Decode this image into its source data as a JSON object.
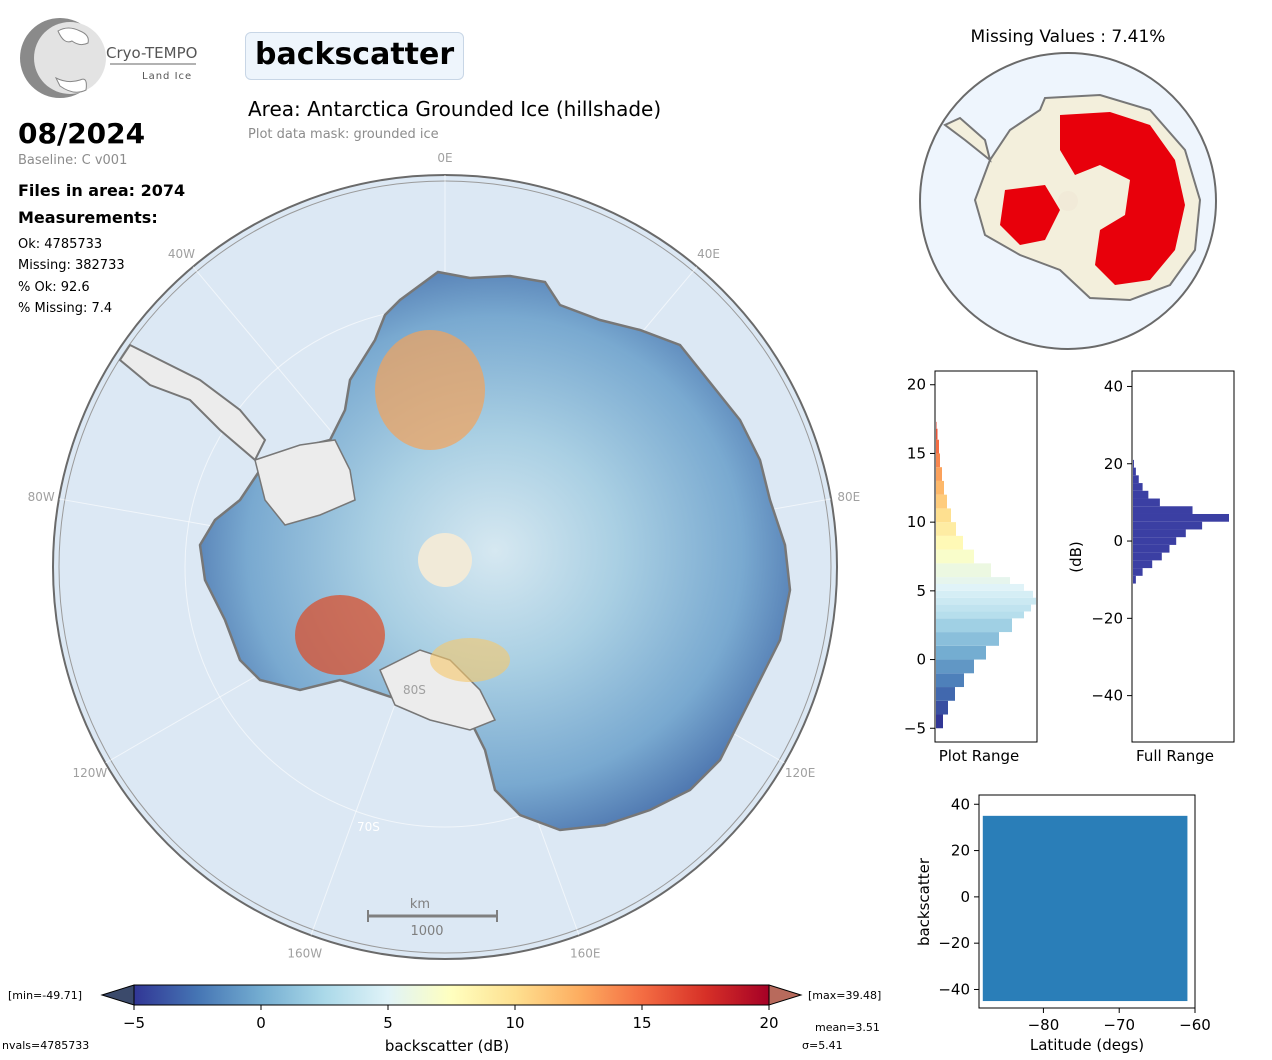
{
  "header": {
    "logo_name": "Cryo-TEMPO",
    "logo_sub": "Land Ice",
    "parameter": "backscatter",
    "date": "08/2024",
    "baseline": "Baseline: C v001",
    "files": "Files in area: 2074",
    "measurements_title": "Measurements:",
    "stats": [
      "Ok: 4785733",
      "Missing: 382733",
      "% Ok: 92.6",
      "% Missing: 7.4"
    ],
    "area_title": "Area: Antarctica Grounded Ice (hillshade)",
    "mask": "Plot data mask: grounded ice",
    "missing_title": "Missing Values : 7.41%"
  },
  "map": {
    "longitude_labels": [
      "0E",
      "40E",
      "80E",
      "120E",
      "160E",
      "160W",
      "120W",
      "80W",
      "40W"
    ],
    "latitude_labels": [
      "80S",
      "70S"
    ],
    "scalebar_unit": "km",
    "scalebar_value": "1000",
    "colors": {
      "ocean": "#d9e6f2",
      "land": "#f3efdc",
      "coast": "#7a7a7a",
      "missing": "#e8000b"
    }
  },
  "colorbar": {
    "label": "backscatter (dB)",
    "min_text": "[min=-49.71]",
    "max_text": "[max=39.48]",
    "nvals": "nvals=4785733",
    "mean": "mean=3.51",
    "sigma": "σ=5.41",
    "ticks": [
      "−5",
      "0",
      "5",
      "10",
      "15",
      "20"
    ],
    "colormap": [
      "#313695",
      "#4575b4",
      "#74add1",
      "#abd9e9",
      "#e0f3f8",
      "#ffffbf",
      "#fee090",
      "#fdae61",
      "#f46d43",
      "#d73027",
      "#a50026"
    ],
    "under_color": "#3b4a6b",
    "over_color": "#b86a5c"
  },
  "chart_data": [
    {
      "type": "histogram",
      "orientation": "horizontal",
      "xlabel": "Plot Range",
      "ylim": [
        -6,
        21
      ],
      "y_ticks": [
        "−5",
        "0",
        "5",
        "10",
        "15",
        "20"
      ],
      "bins_dB": [
        -5,
        -4,
        -3,
        -2,
        -1,
        0,
        1,
        2,
        3,
        3.5,
        4,
        4.5,
        5,
        5.5,
        6,
        7,
        8,
        9,
        10,
        11,
        12,
        13,
        14,
        15,
        16,
        16.8
      ],
      "relative_counts": [
        0.07,
        0.12,
        0.19,
        0.28,
        0.38,
        0.5,
        0.63,
        0.76,
        0.88,
        0.95,
        1.0,
        0.97,
        0.88,
        0.74,
        0.55,
        0.38,
        0.27,
        0.2,
        0.15,
        0.11,
        0.08,
        0.06,
        0.04,
        0.03,
        0.015,
        0.005
      ]
    },
    {
      "type": "histogram",
      "orientation": "horizontal",
      "xlabel": "Full Range",
      "ylabel": "(dB)",
      "ylim": [
        -52,
        44
      ],
      "y_ticks": [
        "40",
        "20",
        "0",
        "−20",
        "−40"
      ],
      "bins_dB": [
        -11,
        -9,
        -7,
        -5,
        -3,
        -1,
        1,
        3,
        5,
        7,
        9,
        11,
        13,
        15,
        17,
        19
      ],
      "relative_counts": [
        0.03,
        0.1,
        0.2,
        0.3,
        0.38,
        0.45,
        0.55,
        0.72,
        1.0,
        0.62,
        0.28,
        0.16,
        0.1,
        0.06,
        0.03,
        0.01
      ],
      "color": "#3b3fa3"
    },
    {
      "type": "scatter",
      "xlabel": "Latitude (degs)",
      "ylabel": "backscatter",
      "xlim": [
        -88.5,
        -60
      ],
      "ylim": [
        -48,
        44
      ],
      "x_ticks": [
        "−80",
        "−70",
        "−60"
      ],
      "y_ticks": [
        "40",
        "20",
        "0",
        "−20",
        "−40"
      ],
      "series": [
        {
          "x_range": [
            -88,
            -61
          ],
          "y_min": -45,
          "y_max": 35,
          "color": "#1f77b4"
        }
      ]
    }
  ]
}
